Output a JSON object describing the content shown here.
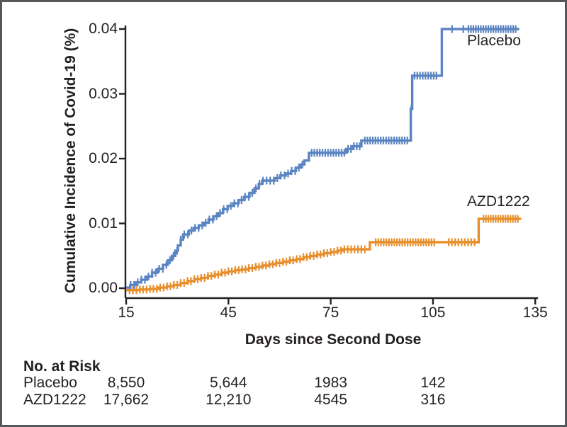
{
  "figure": {
    "y_axis_title": "Cumulative Incidence of Covid-19 (%)",
    "x_axis_title": "Days since Second Dose"
  },
  "chart_data": {
    "type": "line",
    "subtype": "kaplan-meier-cumulative-incidence-step",
    "title": "",
    "xlabel": "Days since Second Dose",
    "ylabel": "Cumulative Incidence of Covid-19 (%)",
    "xlim": [
      15,
      135
    ],
    "ylim": [
      0,
      0.04
    ],
    "grid": false,
    "x_tick_values": [
      15,
      45,
      75,
      105,
      135
    ],
    "x_tick_labels": [
      "15",
      "45",
      "75",
      "105",
      "135"
    ],
    "y_tick_values": [
      0,
      0.01,
      0.02,
      0.03,
      0.04
    ],
    "y_tick_labels": [
      "0.00",
      "0.01",
      "0.02",
      "0.03",
      "0.04"
    ],
    "axis_color": "#231f20",
    "series": [
      {
        "name": "AZD1222",
        "color": "#e78f2c",
        "end_day": 130.9,
        "points": [
          [
            15,
            -0.0003
          ],
          [
            19,
            -0.0002
          ],
          [
            22,
            -0.0001
          ],
          [
            24.5,
            0.0001
          ],
          [
            27,
            0.0003
          ],
          [
            29,
            0.0005
          ],
          [
            31,
            0.0008
          ],
          [
            33,
            0.0011
          ],
          [
            35,
            0.0014
          ],
          [
            37,
            0.0016
          ],
          [
            39,
            0.0019
          ],
          [
            41,
            0.0021
          ],
          [
            43,
            0.0024
          ],
          [
            45,
            0.0026
          ],
          [
            47,
            0.0028
          ],
          [
            49,
            0.0029
          ],
          [
            51,
            0.0031
          ],
          [
            53,
            0.0033
          ],
          [
            55,
            0.0035
          ],
          [
            57,
            0.0037
          ],
          [
            59,
            0.0039
          ],
          [
            61,
            0.0041
          ],
          [
            63,
            0.0043
          ],
          [
            65,
            0.0045
          ],
          [
            67,
            0.0048
          ],
          [
            69,
            0.005
          ],
          [
            71,
            0.0052
          ],
          [
            73,
            0.0054
          ],
          [
            75,
            0.0056
          ],
          [
            77,
            0.0058
          ],
          [
            78.6,
            0.006
          ],
          [
            86.5,
            0.0071
          ],
          [
            118.4,
            0.0107
          ]
        ],
        "censor_tick_ranges": [
          {
            "from": 16.0,
            "to": 85.8,
            "step": 1.0
          },
          {
            "from": 88.2,
            "to": 105.8,
            "step": 0.78
          },
          {
            "from": 109.6,
            "to": 117.8,
            "step": 0.95
          },
          {
            "from": 119.8,
            "to": 130.5,
            "step": 0.72
          }
        ]
      },
      {
        "name": "Placebo",
        "color": "#5b84c2",
        "end_day": 130.3,
        "points": [
          [
            15,
            0.0001
          ],
          [
            16.2,
            0.0005
          ],
          [
            17.8,
            0.0009
          ],
          [
            19.4,
            0.0013
          ],
          [
            21,
            0.0018
          ],
          [
            22.6,
            0.0024
          ],
          [
            24.2,
            0.003
          ],
          [
            25.8,
            0.0036
          ],
          [
            27.2,
            0.0043
          ],
          [
            28.4,
            0.005
          ],
          [
            29.4,
            0.0058
          ],
          [
            30.2,
            0.0066
          ],
          [
            31,
            0.0075
          ],
          [
            31.7,
            0.0083
          ],
          [
            33.4,
            0.0089
          ],
          [
            34.8,
            0.0093
          ],
          [
            36.3,
            0.0097
          ],
          [
            37.8,
            0.0101
          ],
          [
            39.2,
            0.0106
          ],
          [
            40.6,
            0.0111
          ],
          [
            42,
            0.0116
          ],
          [
            43.4,
            0.0122
          ],
          [
            44.8,
            0.0127
          ],
          [
            46.4,
            0.0131
          ],
          [
            48,
            0.0136
          ],
          [
            49.6,
            0.0141
          ],
          [
            51.2,
            0.0147
          ],
          [
            52.6,
            0.0154
          ],
          [
            53.9,
            0.0161
          ],
          [
            54.9,
            0.0166
          ],
          [
            58.6,
            0.017
          ],
          [
            60.2,
            0.0174
          ],
          [
            61.8,
            0.0177
          ],
          [
            63.4,
            0.0181
          ],
          [
            64.8,
            0.0186
          ],
          [
            66.2,
            0.0191
          ],
          [
            67.3,
            0.0197
          ],
          [
            68.6,
            0.0209
          ],
          [
            79.6,
            0.0215
          ],
          [
            81.5,
            0.0219
          ],
          [
            84,
            0.0228
          ],
          [
            98.5,
            0.0277
          ],
          [
            98.9,
            0.0328
          ],
          [
            107.6,
            0.04
          ]
        ],
        "censor_tick_ranges": [
          {
            "from": 16.3,
            "to": 67.6,
            "step": 1.05
          },
          {
            "from": 69.4,
            "to": 79.0,
            "step": 0.8
          },
          {
            "from": 80.1,
            "to": 83.6,
            "step": 0.85
          },
          {
            "from": 85.0,
            "to": 98.1,
            "step": 0.78
          },
          {
            "from": 98.65,
            "to": 98.65,
            "step": 1
          },
          {
            "from": 99.6,
            "to": 106.6,
            "step": 0.8
          },
          {
            "from": 110.6,
            "to": 113.9,
            "step": 3.3
          },
          {
            "from": 115.4,
            "to": 129.9,
            "step": 0.73
          }
        ]
      }
    ],
    "legend_position": "on-chart-right"
  },
  "series_labels": {
    "placebo": "Placebo",
    "azd1222": "AZD1222"
  },
  "risk_table": {
    "title": "No. at Risk",
    "col_days": [
      15,
      45,
      75,
      105
    ],
    "rows": [
      {
        "label": "Placebo",
        "values": [
          "8,550",
          "5,644",
          "1983",
          "142"
        ]
      },
      {
        "label": "AZD1222",
        "values": [
          "17,662",
          "12,210",
          "4545",
          "316"
        ]
      }
    ]
  }
}
